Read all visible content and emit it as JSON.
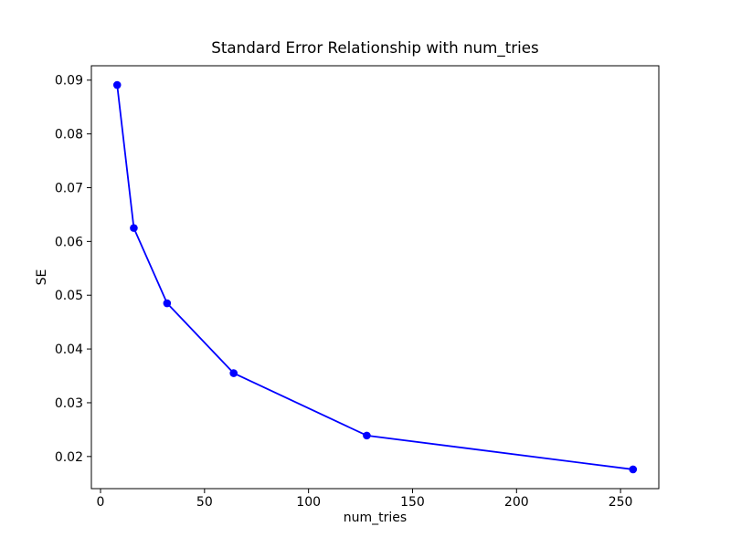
{
  "chart_data": {
    "type": "line",
    "title": "Standard Error Relationship with num_tries",
    "xlabel": "num_tries",
    "ylabel": "SE",
    "x": [
      8,
      16,
      32,
      64,
      128,
      256
    ],
    "y": [
      0.0891,
      0.0625,
      0.0485,
      0.0355,
      0.0239,
      0.0176
    ],
    "series": [
      {
        "name": "SE",
        "values": [
          0.0891,
          0.0625,
          0.0485,
          0.0355,
          0.0239,
          0.0176
        ]
      }
    ],
    "xlim": [
      -4.4,
      268.4
    ],
    "ylim": [
      0.014025,
      0.092675
    ],
    "xticks": {
      "values": [
        0,
        50,
        100,
        150,
        200,
        250
      ],
      "labels": [
        "0",
        "50",
        "100",
        "150",
        "200",
        "250"
      ]
    },
    "yticks": {
      "values": [
        0.02,
        0.03,
        0.04,
        0.05,
        0.06,
        0.07,
        0.08,
        0.09
      ],
      "labels": [
        "0.02",
        "0.03",
        "0.04",
        "0.05",
        "0.06",
        "0.07",
        "0.08",
        "0.09"
      ]
    },
    "grid": false,
    "legend": null,
    "line_color": "#0000ff",
    "marker": "circle",
    "marker_color": "#0000ff",
    "spine_color": "#000000",
    "background_color": "#ffffff"
  }
}
